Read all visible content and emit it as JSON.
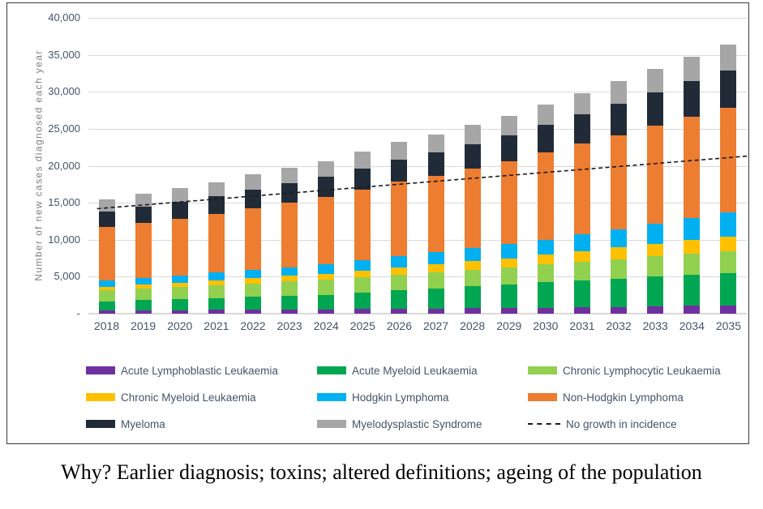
{
  "caption": "Why? Earlier diagnosis; toxins; altered definitions; ageing of the population",
  "colors": {
    "gridline": "#D9D9D9",
    "axis_text": "#44546A",
    "ylabel_text": "#808080",
    "panel_border": "#3b3b3b"
  },
  "chart_data": {
    "type": "bar",
    "stacked": true,
    "title": "",
    "xlabel": "",
    "ylabel": "Number of new cases diagnosed each year",
    "ylim": [
      0,
      40000
    ],
    "grid": true,
    "legend_position": "bottom",
    "categories": [
      "2018",
      "2019",
      "2020",
      "2021",
      "2022",
      "2023",
      "2024",
      "2025",
      "2026",
      "2027",
      "2028",
      "2029",
      "2030",
      "2031",
      "2032",
      "2033",
      "2034",
      "2035"
    ],
    "yticks": [
      {
        "value": 0,
        "label": "-"
      },
      {
        "value": 5000,
        "label": "5,000"
      },
      {
        "value": 10000,
        "label": "10,000"
      },
      {
        "value": 15000,
        "label": "15,000"
      },
      {
        "value": 20000,
        "label": "20,000"
      },
      {
        "value": 25000,
        "label": "25,000"
      },
      {
        "value": 30000,
        "label": "30,000"
      },
      {
        "value": 35000,
        "label": "35,000"
      },
      {
        "value": 40000,
        "label": "40,000"
      }
    ],
    "series": [
      {
        "name": "Acute Lymphoblastic Leukaemia",
        "color": "#7030A0",
        "values": [
          400,
          450,
          450,
          500,
          550,
          600,
          600,
          650,
          700,
          700,
          750,
          750,
          800,
          850,
          900,
          1000,
          1050,
          1100
        ]
      },
      {
        "name": "Acute Myeloid Leukaemia",
        "color": "#00A651",
        "values": [
          1300,
          1400,
          1500,
          1600,
          1750,
          1850,
          1950,
          2200,
          2450,
          2700,
          2950,
          3200,
          3450,
          3650,
          3850,
          4000,
          4200,
          4400
        ]
      },
      {
        "name": "Chronic Lymphocytic Leukaemia",
        "color": "#92D050",
        "values": [
          1450,
          1550,
          1650,
          1700,
          1800,
          1900,
          2000,
          2050,
          2150,
          2200,
          2250,
          2350,
          2400,
          2500,
          2600,
          2750,
          2850,
          2950
        ]
      },
      {
        "name": "Chronic Myeloid Leukaemia",
        "color": "#FFC000",
        "values": [
          500,
          550,
          600,
          650,
          700,
          750,
          800,
          900,
          950,
          1050,
          1150,
          1200,
          1300,
          1450,
          1600,
          1700,
          1850,
          2000
        ]
      },
      {
        "name": "Hodgkin Lymphoma",
        "color": "#00B0F0",
        "values": [
          850,
          900,
          1000,
          1100,
          1150,
          1200,
          1300,
          1400,
          1550,
          1650,
          1750,
          1900,
          2000,
          2250,
          2500,
          2750,
          3000,
          3250
        ]
      },
      {
        "name": "Non-Hodgkin Lymphoma",
        "color": "#ED7D31",
        "values": [
          7200,
          7400,
          7650,
          7900,
          8350,
          8700,
          9150,
          9600,
          10050,
          10300,
          10750,
          11200,
          11900,
          12300,
          12700,
          13200,
          13650,
          14100
        ]
      },
      {
        "name": "Myeloma",
        "color": "#212B38",
        "values": [
          2100,
          2200,
          2300,
          2400,
          2500,
          2600,
          2700,
          2850,
          3000,
          3200,
          3350,
          3500,
          3650,
          3950,
          4250,
          4500,
          4800,
          5100
        ]
      },
      {
        "name": "Myelodysplastic Syndrome",
        "color": "#A6A6A6",
        "values": [
          1700,
          1800,
          1850,
          1950,
          2000,
          2100,
          2150,
          2250,
          2350,
          2450,
          2550,
          2650,
          2750,
          2900,
          3000,
          3150,
          3300,
          3450
        ]
      }
    ],
    "line_series": {
      "name": "No growth in incidence",
      "style": "dashed",
      "color": "#1a1a1a",
      "values": [
        14300,
        14700,
        15100,
        15500,
        15900,
        16300,
        16700,
        17100,
        17500,
        17900,
        18300,
        18700,
        19100,
        19500,
        19900,
        20300,
        20700,
        21100
      ]
    }
  }
}
